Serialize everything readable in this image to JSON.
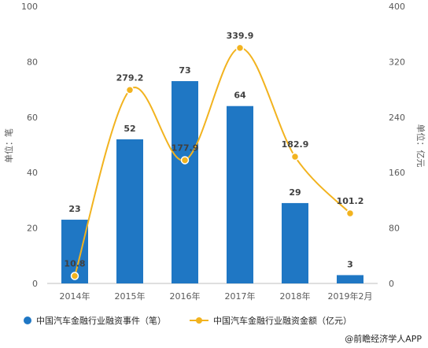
{
  "chart_data": {
    "type": "bar",
    "categories": [
      "2014年",
      "2015年",
      "2016年",
      "2017年",
      "2018年",
      "2019年2月"
    ],
    "series": [
      {
        "name": "中国汽车金融行业融资事件（笔）",
        "type": "bar",
        "axis": "left",
        "values": [
          23,
          52,
          73,
          64,
          29,
          3
        ],
        "color": "#1f77c4"
      },
      {
        "name": "中国汽车金融行业融资金额（亿元）",
        "type": "line",
        "axis": "right",
        "values": [
          10.8,
          279.2,
          177.9,
          339.9,
          182.9,
          101.2
        ],
        "color": "#f2b31f"
      }
    ],
    "ylabel": "单位：笔",
    "y2label": "单位：亿元",
    "ylim": [
      0,
      100
    ],
    "y2lim": [
      0,
      400
    ],
    "yticks": [
      0,
      20,
      40,
      60,
      80,
      100
    ],
    "y2ticks": [
      0,
      80,
      160,
      240,
      320,
      400
    ],
    "grid": false,
    "legend_position": "bottom"
  },
  "source": "@前瞻经济学人APP"
}
